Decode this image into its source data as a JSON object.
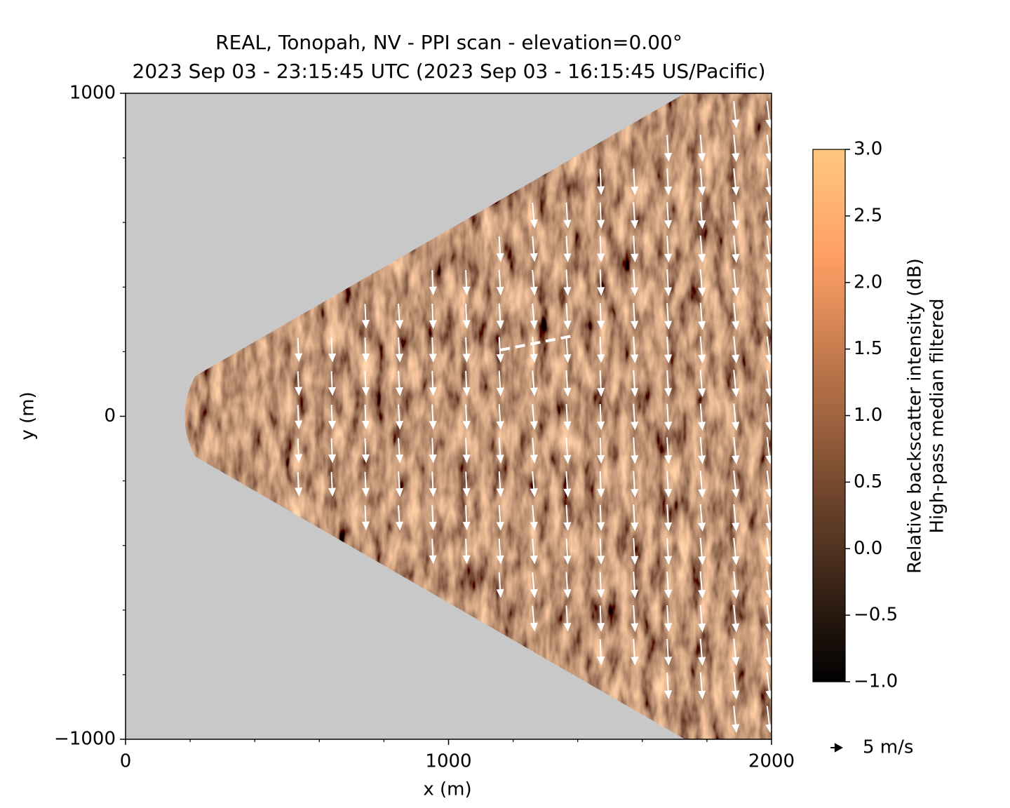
{
  "chart_data": {
    "type": "quiver",
    "title": "REAL, Tonopah, NV - PPI scan - elevation=0.00°",
    "subtitle": "2023 Sep 03 - 23:15:45 UTC (2023 Sep 03 - 16:15:45 US/Pacific)",
    "xlabel": "x (m)",
    "ylabel": "y (m)",
    "xlim": [
      0,
      2000
    ],
    "ylim": [
      -1000,
      1000
    ],
    "xticks": [
      0,
      1000,
      2000
    ],
    "yticks": [
      {
        "value": -1000,
        "label": "−1000"
      },
      0,
      1000
    ],
    "xminorticks": [
      200,
      400,
      600,
      800,
      1200,
      1400,
      1600,
      1800
    ],
    "yminorticks": [
      -800,
      -600,
      -400,
      -200,
      200,
      400,
      600,
      800
    ],
    "colorbar": {
      "label": [
        "Relative backscatter intensity (dB)",
        "High-pass median filtered"
      ],
      "colormap": "copper",
      "lim": [
        -1,
        3
      ],
      "ticks": [
        {
          "value": -1,
          "label": "−1.0"
        },
        {
          "value": -0.5,
          "label": "−0.5"
        },
        {
          "value": 0,
          "label": "0.0"
        },
        {
          "value": 0.5,
          "label": "0.5"
        },
        {
          "value": 1,
          "label": "1.0"
        },
        {
          "value": 1.5,
          "label": "1.5"
        },
        {
          "value": 2,
          "label": "2.0"
        },
        {
          "value": 2.5,
          "label": "2.5"
        },
        {
          "value": 3,
          "label": "3.0"
        }
      ]
    },
    "arrow_color": "#ffffff",
    "quiver_key": {
      "value": 5,
      "label": "5 m/s"
    },
    "columns": [
      {
        "x": 535,
        "y": [
          208,
          104,
          0,
          -104,
          -208
        ],
        "u": 0.2,
        "v": -4.6
      },
      {
        "x": 639,
        "y": [
          208,
          104,
          0,
          -104,
          -208
        ],
        "u": 0.2,
        "v": -4.7
      },
      {
        "x": 743,
        "y": [
          312,
          208,
          104,
          0,
          -104,
          -208,
          -312
        ],
        "u": 0.2,
        "v": -4.7
      },
      {
        "x": 847,
        "y": [
          312,
          208,
          104,
          0,
          -104,
          -208,
          -312
        ],
        "u": 0.3,
        "v": -4.8
      },
      {
        "x": 951,
        "y": [
          416,
          312,
          208,
          104,
          0,
          -104,
          -208,
          -312,
          -416
        ],
        "u": 0.2,
        "v": -4.8
      },
      {
        "x": 1055,
        "y": [
          416,
          312,
          208,
          104,
          0,
          -104,
          -208,
          -312,
          -416
        ],
        "u": 0.2,
        "v": -4.8
      },
      {
        "x": 1159,
        "y": [
          520,
          416,
          312,
          208,
          104,
          0,
          -104,
          -208,
          -312,
          -416,
          -520
        ],
        "u": 0.3,
        "v": -4.9
      },
      {
        "x": 1263,
        "y": [
          624,
          520,
          416,
          312,
          208,
          104,
          0,
          -104,
          -208,
          -312,
          -416,
          -520,
          -624
        ],
        "u": 0.4,
        "v": -4.9
      },
      {
        "x": 1367,
        "y": [
          624,
          520,
          416,
          312,
          208,
          104,
          0,
          -104,
          -208,
          -312,
          -416,
          -520,
          -624
        ],
        "u": 0.3,
        "v": -5.0
      },
      {
        "x": 1471,
        "y": [
          728,
          624,
          520,
          416,
          312,
          208,
          104,
          0,
          -104,
          -208,
          -312,
          -416,
          -520,
          -624,
          -728
        ],
        "u": 0.2,
        "v": -5.0
      },
      {
        "x": 1575,
        "y": [
          728,
          624,
          520,
          416,
          312,
          208,
          104,
          0,
          -104,
          -208,
          -312,
          -416,
          -520,
          -624,
          -728
        ],
        "u": 0.3,
        "v": -5.1
      },
      {
        "x": 1679,
        "y": [
          832,
          728,
          624,
          520,
          416,
          312,
          208,
          104,
          0,
          -104,
          -208,
          -312,
          -416,
          -520,
          -624,
          -728,
          -832
        ],
        "u": 0.3,
        "v": -5.1
      },
      {
        "x": 1783,
        "y": [
          832,
          728,
          624,
          520,
          416,
          312,
          208,
          104,
          0,
          -104,
          -208,
          -312,
          -416,
          -520,
          -624,
          -728,
          -832
        ],
        "u": 0.4,
        "v": -5.2
      },
      {
        "x": 1887,
        "y": [
          936,
          832,
          728,
          624,
          520,
          416,
          312,
          208,
          104,
          0,
          -104,
          -208,
          -312,
          -416,
          -520,
          -624,
          -728,
          -832,
          -936
        ],
        "u": 0.5,
        "v": -5.2
      },
      {
        "x": 1991,
        "y": [
          936,
          832,
          728,
          624,
          520,
          416,
          312,
          208,
          104,
          0,
          -104,
          -208,
          -312,
          -416,
          -520,
          -624,
          -728,
          -832,
          -936
        ],
        "u": 0.6,
        "v": -5.2
      }
    ],
    "annotation_line": {
      "x": [
        1160,
        1390
      ],
      "y": [
        205,
        250
      ]
    }
  }
}
